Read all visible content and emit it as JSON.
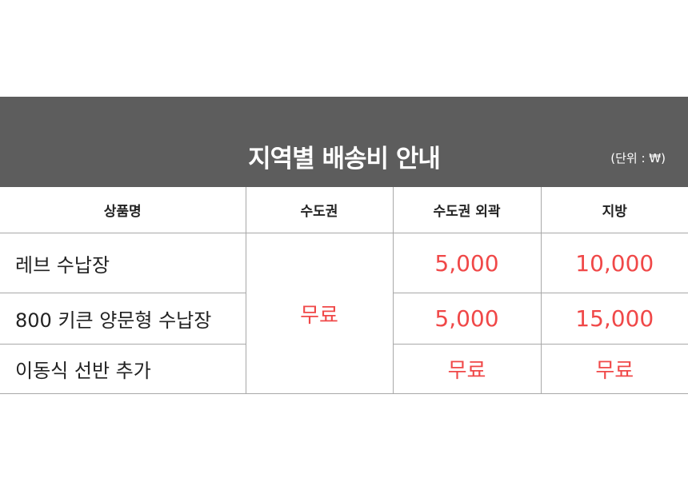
{
  "header": {
    "title": "지역별 배송비 안내",
    "unit": "(단위 : ₩)"
  },
  "columns": [
    "상품명",
    "수도권",
    "수도권 외곽",
    "지방"
  ],
  "rows": [
    {
      "name": "레브 수납장",
      "capital": "무료",
      "outer": "5,000",
      "province": "10,000"
    },
    {
      "name": "800 키큰 양문형 수납장",
      "outer": "5,000",
      "province": "15,000"
    },
    {
      "name": "이동식 선반 추가",
      "outer": "무료",
      "province": "무료"
    }
  ],
  "colors": {
    "banner": "#5d5d5d",
    "price": "#f04848"
  }
}
